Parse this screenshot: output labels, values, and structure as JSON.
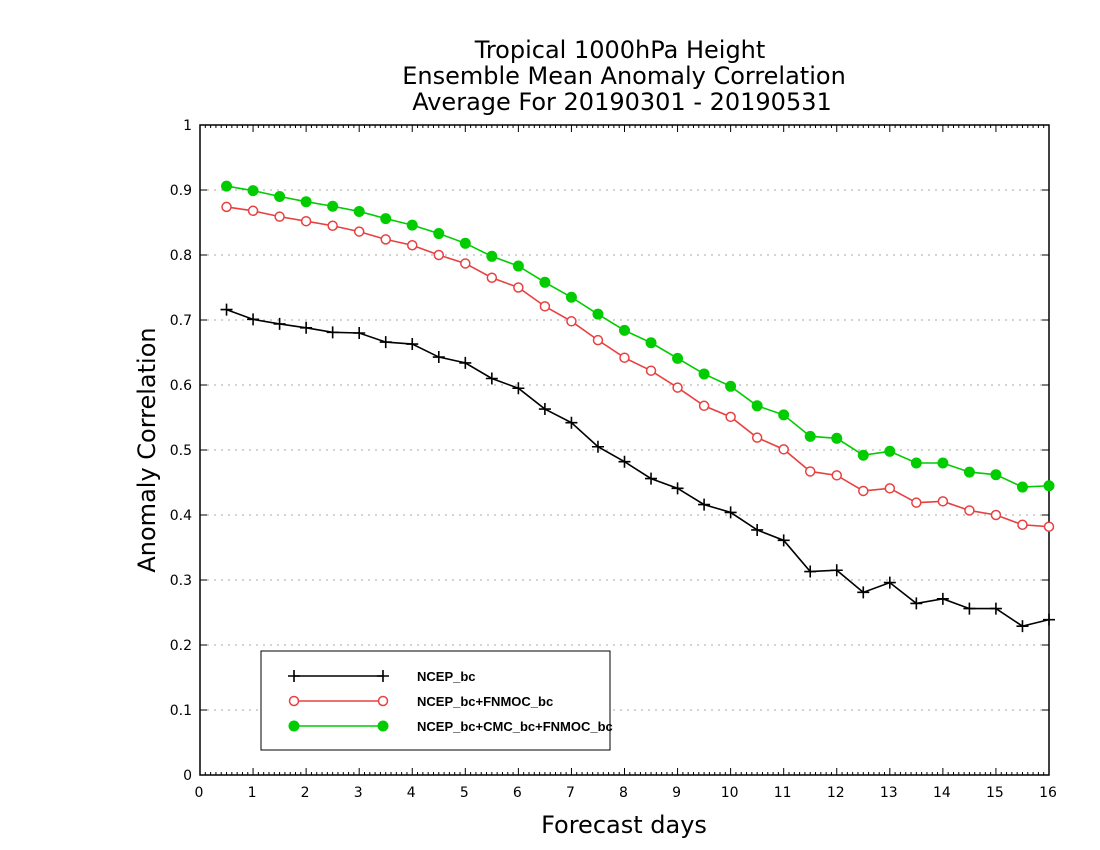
{
  "chart_data": {
    "type": "line",
    "title_lines": [
      "Tropical 1000hPa Height",
      "Ensemble Mean Anomaly Correlation",
      "Average For 20190301 - 20190531"
    ],
    "xlabel": "Forecast days",
    "ylabel": "Anomaly Correlation",
    "xlim": [
      0,
      16
    ],
    "ylim": [
      0,
      1
    ],
    "xticks": [
      "0",
      "1",
      "2",
      "3",
      "4",
      "5",
      "6",
      "7",
      "8",
      "9",
      "10",
      "11",
      "12",
      "13",
      "14",
      "15",
      "16"
    ],
    "yticks": [
      "0",
      "0.1",
      "0.2",
      "0.3",
      "0.4",
      "0.5",
      "0.6",
      "0.7",
      "0.8",
      "0.9",
      "1"
    ],
    "grid": "horizontal-dotted",
    "legend_position": "bottom-left",
    "x": [
      0.5,
      1,
      1.5,
      2,
      2.5,
      3,
      3.5,
      4,
      4.5,
      5,
      5.5,
      6,
      6.5,
      7,
      7.5,
      8,
      8.5,
      9,
      9.5,
      10,
      10.5,
      11,
      11.5,
      12,
      12.5,
      13,
      13.5,
      14,
      14.5,
      15,
      15.5,
      16
    ],
    "series": [
      {
        "name": "NCEP_bc",
        "color": "#000000",
        "marker": "plus",
        "values": [
          0.716,
          0.701,
          0.694,
          0.688,
          0.681,
          0.68,
          0.666,
          0.663,
          0.643,
          0.634,
          0.61,
          0.595,
          0.563,
          0.542,
          0.505,
          0.482,
          0.456,
          0.441,
          0.416,
          0.404,
          0.377,
          0.361,
          0.313,
          0.315,
          0.281,
          0.296,
          0.264,
          0.271,
          0.256,
          0.256,
          0.229,
          0.239
        ]
      },
      {
        "name": "NCEP_bc+FNMOC_bc",
        "color": "#e84040",
        "marker": "open-circle",
        "values": [
          0.874,
          0.868,
          0.859,
          0.852,
          0.845,
          0.836,
          0.824,
          0.815,
          0.8,
          0.787,
          0.765,
          0.75,
          0.721,
          0.698,
          0.669,
          0.642,
          0.622,
          0.596,
          0.568,
          0.551,
          0.519,
          0.501,
          0.467,
          0.461,
          0.437,
          0.441,
          0.419,
          0.421,
          0.407,
          0.4,
          0.385,
          0.382
        ]
      },
      {
        "name": "NCEP_bc+CMC_bc+FNMOC_bc",
        "color": "#00cc00",
        "marker": "filled-circle",
        "values": [
          0.906,
          0.899,
          0.89,
          0.882,
          0.875,
          0.867,
          0.856,
          0.846,
          0.833,
          0.818,
          0.798,
          0.783,
          0.758,
          0.735,
          0.709,
          0.684,
          0.665,
          0.641,
          0.617,
          0.598,
          0.568,
          0.554,
          0.521,
          0.518,
          0.492,
          0.498,
          0.48,
          0.48,
          0.466,
          0.462,
          0.443,
          0.445
        ]
      }
    ]
  }
}
